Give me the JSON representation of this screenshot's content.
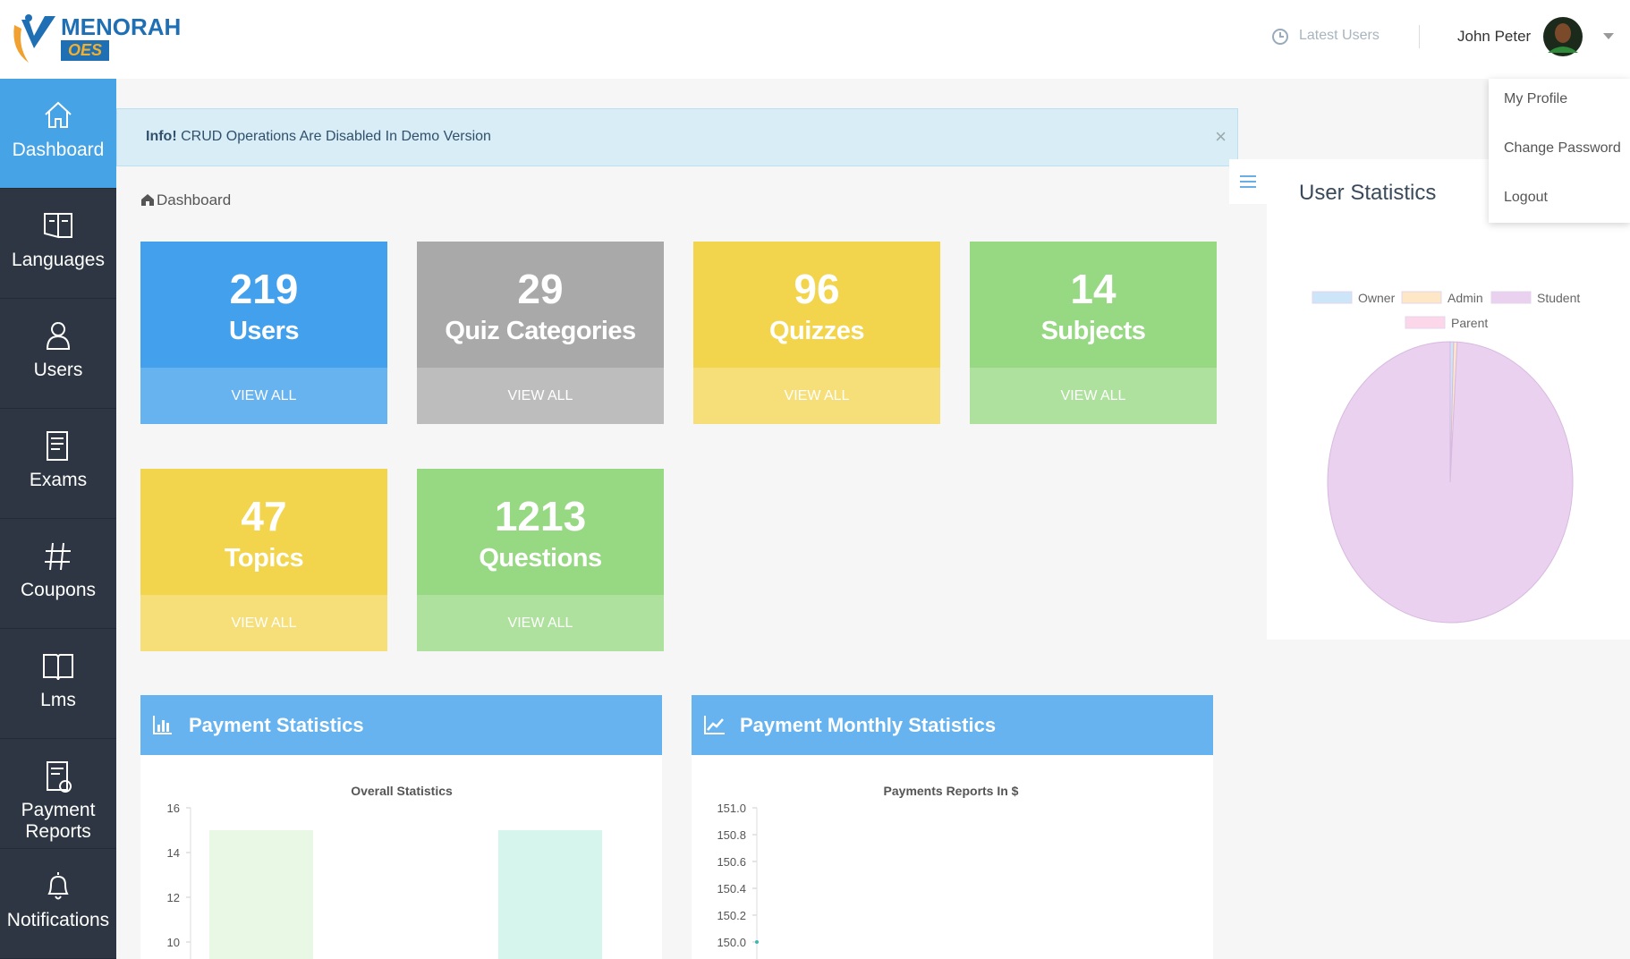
{
  "header": {
    "logo_title": "MENORAH",
    "logo_subtitle": "OES",
    "latest_users": "Latest Users",
    "user_name": "John Peter"
  },
  "profile_menu": [
    "My Profile",
    "Change Password",
    "Logout"
  ],
  "sidebar": [
    "Dashboard",
    "Languages",
    "Users",
    "Exams",
    "Coupons",
    "Lms",
    "Payment Reports",
    "Notifications"
  ],
  "alert": {
    "label": "Info!",
    "text": "CRUD Operations Are Disabled In Demo Version",
    "close": "×"
  },
  "breadcrumb": "Dashboard",
  "cards": [
    {
      "count": 219,
      "label": "Users",
      "link": "VIEW ALL",
      "color": "#42a0ec",
      "footer_color": "#66b3f0"
    },
    {
      "count": 29,
      "label": "Quiz Categories",
      "link": "VIEW ALL",
      "color": "#a9a9a9",
      "footer_color": "#bdbdbd"
    },
    {
      "count": 96,
      "label": "Quizzes",
      "link": "VIEW ALL",
      "color": "#f2d54c",
      "footer_color": "#f6df78"
    },
    {
      "count": 14,
      "label": "Subjects",
      "link": "VIEW ALL",
      "color": "#97d883",
      "footer_color": "#aee19d"
    },
    {
      "count": 47,
      "label": "Topics",
      "link": "VIEW ALL",
      "color": "#f2d54c",
      "footer_color": "#f6df78"
    },
    {
      "count": 1213,
      "label": "Questions",
      "link": "VIEW ALL",
      "color": "#97d883",
      "footer_color": "#aee19d"
    }
  ],
  "payment_statistics": {
    "heading": "Payment Statistics",
    "chart": {
      "type": "bar",
      "title": "Overall Statistics",
      "categories": [
        null,
        null
      ],
      "values": [
        15,
        15
      ],
      "colors": [
        "#e9f8e4",
        "#d6f5ec"
      ],
      "ylim": [
        9.24,
        16
      ],
      "yticks": [
        10,
        12,
        14,
        16
      ]
    }
  },
  "payment_monthly": {
    "heading": "Payment Monthly Statistics",
    "chart": {
      "type": "line",
      "title": "Payments Reports In $",
      "categories": [
        null
      ],
      "values": [
        150
      ],
      "color": "#3fb6b0",
      "ylim": [
        149.873,
        151
      ],
      "yticks": [
        {
          "value": 150,
          "label": "150.0"
        },
        {
          "value": 150.2,
          "label": "150.2"
        },
        {
          "value": 150.4,
          "label": "150.4"
        },
        {
          "value": 150.6,
          "label": "150.6"
        },
        {
          "value": 150.8,
          "label": "150.8"
        },
        {
          "value": 151,
          "label": "151.0"
        }
      ]
    }
  },
  "user_statistics": {
    "heading": "User Statistics",
    "chart": {
      "type": "pie",
      "categories": [
        "Owner",
        "Admin",
        "Student",
        "Parent"
      ],
      "values": [
        1,
        1,
        217,
        0
      ],
      "colors": [
        "#cde5f9",
        "#fde7c6",
        "#e9d1ef",
        "#fcd7ea"
      ]
    }
  }
}
